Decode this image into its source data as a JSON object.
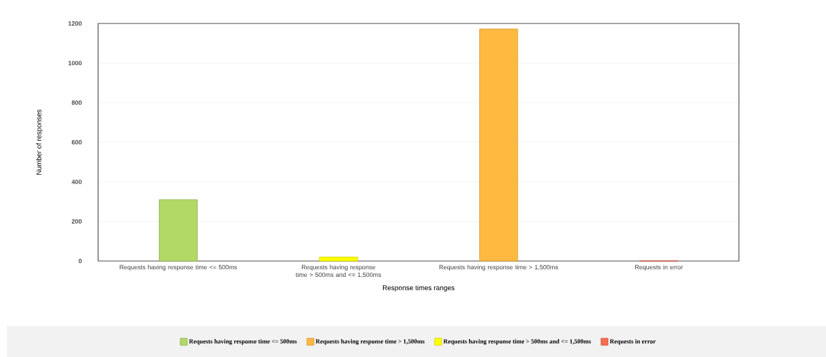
{
  "chart_data": {
    "type": "bar",
    "categories": [
      "Requests having response time <= 500ms",
      "Requests having response time > 500ms and <= 1,500ms",
      "Requests having response time > 1,500ms",
      "Requests in error"
    ],
    "series": [
      {
        "name": "Requests having response time <= 500ms",
        "color": "#b2d966",
        "values": [
          310,
          null,
          null,
          null
        ]
      },
      {
        "name": "Requests having response time > 1,500ms",
        "color": "#ffb940",
        "values": [
          null,
          null,
          1172,
          null
        ]
      },
      {
        "name": "Requests having response time > 500ms and <= 1,500ms",
        "color": "#ffff00",
        "values": [
          null,
          20,
          null,
          null
        ]
      },
      {
        "name": "Requests in error",
        "color": "#f86e52",
        "values": [
          null,
          null,
          null,
          0
        ]
      }
    ],
    "xlabel": "Response times ranges",
    "ylabel": "Number of responses",
    "ylim": [
      0,
      1200
    ],
    "yticks": [
      0,
      200,
      400,
      600,
      800,
      1000,
      1200
    ],
    "grid": "y",
    "legend": "bottom"
  }
}
